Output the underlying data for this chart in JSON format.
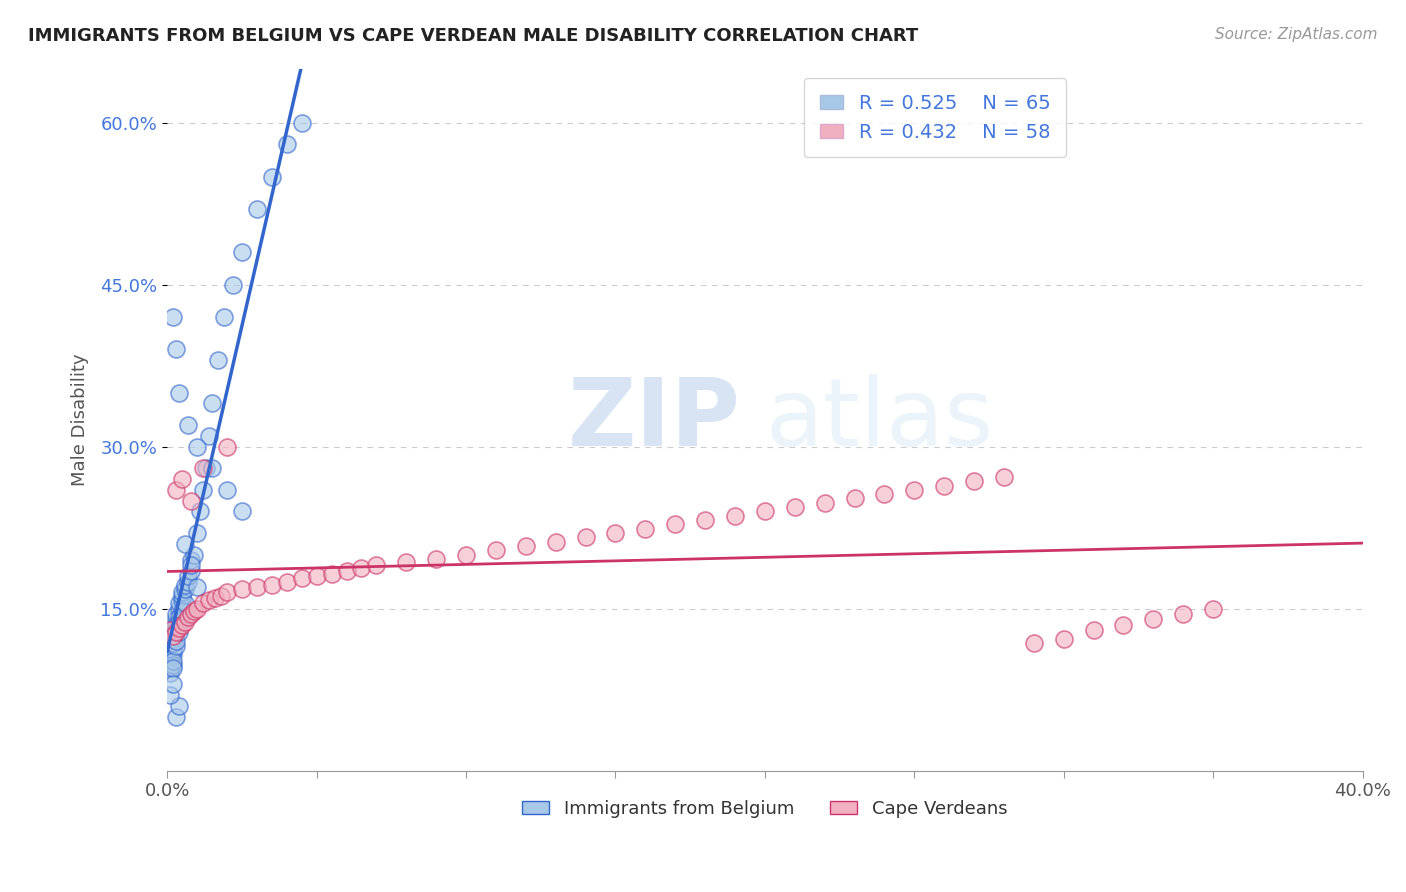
{
  "title": "IMMIGRANTS FROM BELGIUM VS CAPE VERDEAN MALE DISABILITY CORRELATION CHART",
  "source": "Source: ZipAtlas.com",
  "ylabel": "Male Disability",
  "xlim": [
    0.0,
    0.4
  ],
  "ylim": [
    0.0,
    0.65
  ],
  "xticks": [
    0.0,
    0.05,
    0.1,
    0.15,
    0.2,
    0.25,
    0.3,
    0.35,
    0.4
  ],
  "xtick_labels_show": [
    "0.0%",
    "",
    "",
    "",
    "",
    "",
    "",
    "",
    "40.0%"
  ],
  "yticks": [
    0.15,
    0.3,
    0.45,
    0.6
  ],
  "ytick_labels": [
    "15.0%",
    "30.0%",
    "45.0%",
    "60.0%"
  ],
  "legend_r1": "R = 0.525",
  "legend_n1": "N = 65",
  "legend_r2": "R = 0.432",
  "legend_n2": "N = 58",
  "color_blue": "#a8c8e8",
  "color_pink": "#f0b0c0",
  "line_blue": "#3366cc",
  "line_pink": "#cc3366",
  "background": "#ffffff",
  "watermark_zip": "ZIP",
  "watermark_atlas": "atlas",
  "blue_x": [
    0.001,
    0.001,
    0.001,
    0.001,
    0.001,
    0.002,
    0.002,
    0.002,
    0.002,
    0.002,
    0.002,
    0.002,
    0.002,
    0.003,
    0.003,
    0.003,
    0.003,
    0.003,
    0.003,
    0.004,
    0.004,
    0.004,
    0.004,
    0.004,
    0.005,
    0.005,
    0.005,
    0.005,
    0.006,
    0.006,
    0.006,
    0.007,
    0.007,
    0.008,
    0.008,
    0.009,
    0.01,
    0.011,
    0.012,
    0.013,
    0.014,
    0.015,
    0.017,
    0.019,
    0.022,
    0.025,
    0.03,
    0.035,
    0.04,
    0.045,
    0.002,
    0.003,
    0.004,
    0.007,
    0.01,
    0.015,
    0.02,
    0.025,
    0.006,
    0.008,
    0.01,
    0.003,
    0.004,
    0.001,
    0.002
  ],
  "blue_y": [
    0.1,
    0.105,
    0.095,
    0.115,
    0.09,
    0.108,
    0.112,
    0.098,
    0.118,
    0.102,
    0.122,
    0.095,
    0.125,
    0.115,
    0.13,
    0.14,
    0.12,
    0.135,
    0.145,
    0.128,
    0.15,
    0.142,
    0.155,
    0.138,
    0.158,
    0.162,
    0.148,
    0.165,
    0.155,
    0.168,
    0.172,
    0.175,
    0.18,
    0.185,
    0.195,
    0.2,
    0.22,
    0.24,
    0.26,
    0.28,
    0.31,
    0.34,
    0.38,
    0.42,
    0.45,
    0.48,
    0.52,
    0.55,
    0.58,
    0.6,
    0.42,
    0.39,
    0.35,
    0.32,
    0.3,
    0.28,
    0.26,
    0.24,
    0.21,
    0.19,
    0.17,
    0.05,
    0.06,
    0.07,
    0.08
  ],
  "pink_x": [
    0.001,
    0.002,
    0.003,
    0.004,
    0.005,
    0.006,
    0.007,
    0.008,
    0.009,
    0.01,
    0.012,
    0.014,
    0.016,
    0.018,
    0.02,
    0.025,
    0.03,
    0.035,
    0.04,
    0.045,
    0.05,
    0.055,
    0.06,
    0.065,
    0.07,
    0.08,
    0.09,
    0.1,
    0.11,
    0.12,
    0.13,
    0.14,
    0.15,
    0.16,
    0.17,
    0.18,
    0.19,
    0.2,
    0.21,
    0.22,
    0.23,
    0.24,
    0.25,
    0.26,
    0.27,
    0.28,
    0.29,
    0.3,
    0.31,
    0.32,
    0.33,
    0.34,
    0.35,
    0.003,
    0.005,
    0.008,
    0.012,
    0.02
  ],
  "pink_y": [
    0.13,
    0.125,
    0.128,
    0.132,
    0.135,
    0.138,
    0.142,
    0.145,
    0.148,
    0.15,
    0.155,
    0.158,
    0.16,
    0.162,
    0.165,
    0.168,
    0.17,
    0.172,
    0.175,
    0.178,
    0.18,
    0.182,
    0.185,
    0.188,
    0.19,
    0.193,
    0.196,
    0.2,
    0.204,
    0.208,
    0.212,
    0.216,
    0.22,
    0.224,
    0.228,
    0.232,
    0.236,
    0.24,
    0.244,
    0.248,
    0.252,
    0.256,
    0.26,
    0.264,
    0.268,
    0.272,
    0.118,
    0.122,
    0.13,
    0.135,
    0.14,
    0.145,
    0.15,
    0.26,
    0.27,
    0.25,
    0.28,
    0.3
  ]
}
